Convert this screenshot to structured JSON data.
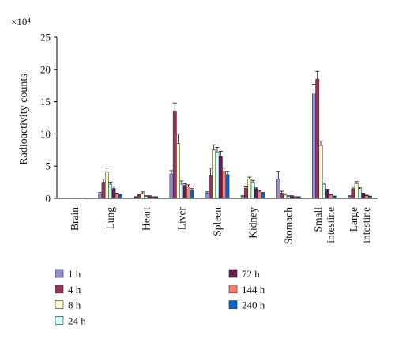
{
  "chart_data": {
    "type": "bar",
    "ylabel": "Radioactivity counts",
    "yscale_label": "×10⁴",
    "ylim": [
      0,
      25
    ],
    "yticks": [
      0,
      5,
      10,
      15,
      20,
      25
    ],
    "categories": [
      "Brain",
      "Lung",
      "Heart",
      "Liver",
      "Spleen",
      "Kidney",
      "Stomach",
      "Small intestine",
      "Large intestine"
    ],
    "category_lines": [
      [
        "Brain"
      ],
      [
        "Lung"
      ],
      [
        "Heart"
      ],
      [
        "Liver"
      ],
      [
        "Spleen"
      ],
      [
        "Kidney"
      ],
      [
        "Stomach"
      ],
      [
        "Small",
        "intestine"
      ],
      [
        "Large",
        "intestine"
      ]
    ],
    "series": [
      {
        "name": "1 h",
        "color": "#8f8fd6",
        "values": [
          0.05,
          0.7,
          0.15,
          3.8,
          0.8,
          0.3,
          3.0,
          16.2,
          0.3
        ],
        "errors": [
          0,
          0.2,
          0.1,
          0.5,
          0.2,
          0.1,
          1.2,
          1.5,
          0.1
        ]
      },
      {
        "name": "4 h",
        "color": "#99335c",
        "values": [
          0.05,
          2.5,
          0.5,
          13.5,
          3.5,
          1.6,
          0.8,
          18.5,
          1.5
        ],
        "errors": [
          0,
          0.5,
          0.1,
          1.3,
          1.2,
          0.3,
          0.3,
          1.2,
          0.3
        ]
      },
      {
        "name": "8 h",
        "color": "#ffffcc",
        "values": [
          0.05,
          4.1,
          0.8,
          8.5,
          7.5,
          3.0,
          0.5,
          8.2,
          2.3
        ],
        "errors": [
          0,
          0.6,
          0.2,
          1.5,
          0.8,
          0.3,
          0.2,
          0.7,
          0.3
        ]
      },
      {
        "name": "24 h",
        "color": "#ccffff",
        "values": [
          0.05,
          2.2,
          0.3,
          2.2,
          7.2,
          2.5,
          0.3,
          2.2,
          1.5
        ],
        "errors": [
          0,
          0.3,
          0.1,
          0.5,
          0.7,
          0.3,
          0.1,
          0.2,
          0.2
        ]
      },
      {
        "name": "72 h",
        "color": "#661a4d",
        "values": [
          0.05,
          1.5,
          0.3,
          2.0,
          6.5,
          1.5,
          0.3,
          1.2,
          0.7
        ],
        "errors": [
          0,
          0.3,
          0.1,
          0.3,
          0.8,
          0.2,
          0.1,
          0.2,
          0.1
        ]
      },
      {
        "name": "144 h",
        "color": "#ff8070",
        "values": [
          0.05,
          0.7,
          0.2,
          1.8,
          4.2,
          1.0,
          0.2,
          0.5,
          0.4
        ],
        "errors": [
          0,
          0.1,
          0.05,
          0.3,
          0.5,
          0.2,
          0.05,
          0.1,
          0.1
        ]
      },
      {
        "name": "240 h",
        "color": "#0066cc",
        "values": [
          0.05,
          0.5,
          0.2,
          1.3,
          3.7,
          0.8,
          0.2,
          0.3,
          0.3
        ],
        "errors": [
          0,
          0.1,
          0.05,
          0.2,
          0.5,
          0.1,
          0.05,
          0.05,
          0.05
        ]
      }
    ],
    "grid": false,
    "legend_position": "bottom"
  }
}
